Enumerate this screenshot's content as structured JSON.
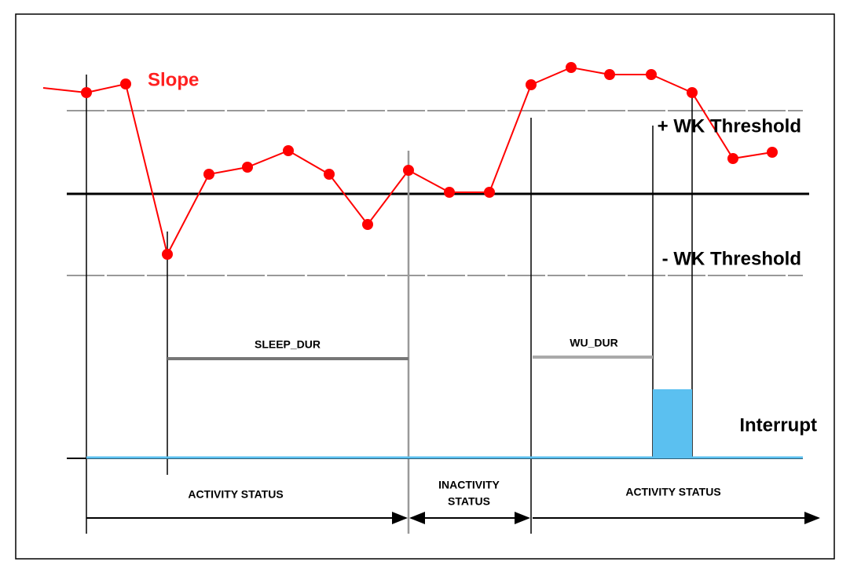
{
  "signal_label": "Slope",
  "thresholds": {
    "upper": "+ WK Threshold",
    "lower": "- WK Threshold"
  },
  "durations": {
    "sleep": "SLEEP_DUR",
    "wake": "WU_DUR"
  },
  "interrupt_label": "Interrupt",
  "status": {
    "first": "ACTIVITY STATUS",
    "middle": [
      "INACTIVITY",
      "STATUS"
    ],
    "last": "ACTIVITY STATUS"
  }
}
